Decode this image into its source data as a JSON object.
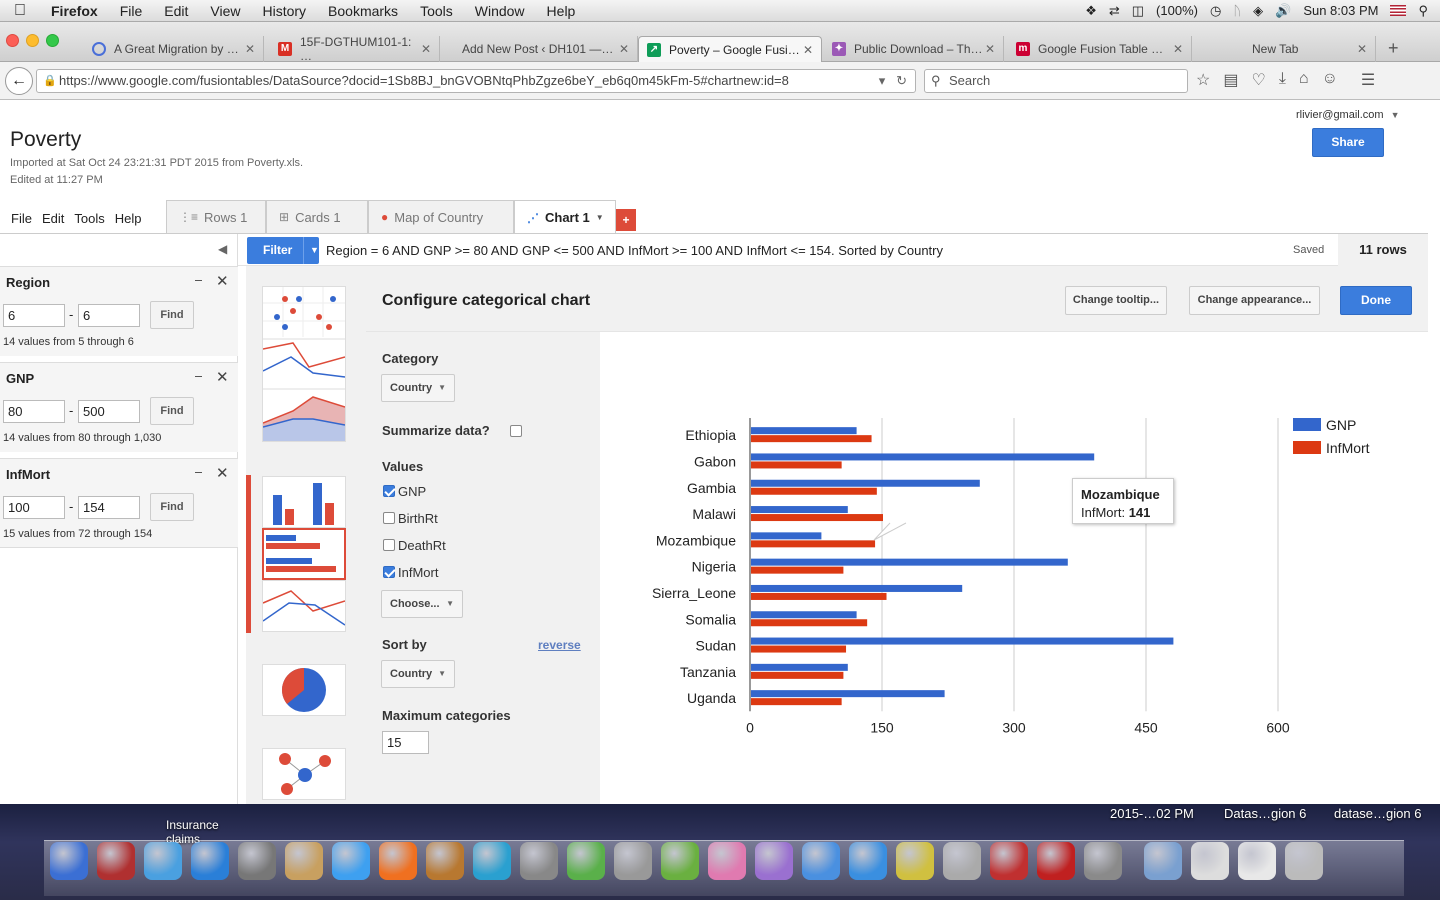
{
  "os_menu": {
    "apple": "",
    "app": "Firefox",
    "items": [
      "File",
      "Edit",
      "View",
      "History",
      "Bookmarks",
      "Tools",
      "Window",
      "Help"
    ],
    "battery": "(100%)",
    "clock": "Sun 8:03 PM"
  },
  "browser": {
    "tabs": [
      {
        "label": "A Great Migration by …",
        "icon_color": "#4a6fd8",
        "icon": "circle-icon"
      },
      {
        "label": "15F-DGTHUM101-1: …",
        "icon_color": "#d93025",
        "icon": "gmail-icon"
      },
      {
        "label": "Add New Post ‹ DH101 —…",
        "icon_color": "#ffffff",
        "icon": "wordpress-icon"
      },
      {
        "label": "Poverty – Google Fusi…",
        "icon_color": "#0f9d58",
        "icon": "chart-icon"
      },
      {
        "label": "Public Download – Th…",
        "icon_color": "#9b59b6",
        "icon": "puzzle-icon"
      },
      {
        "label": "Google Fusion Table …",
        "icon_color": "#cc0033",
        "icon": "m-icon"
      },
      {
        "label": "New Tab",
        "icon_color": "",
        "icon": ""
      }
    ],
    "url": "https://www.google.com/fusiontables/DataSource?docid=1Sb8BJ_bnGVOBNtqPhbZgze6beY_eb6q0m45kFm-5#chartnew:id=8",
    "search_placeholder": "Search"
  },
  "doc": {
    "title": "Poverty",
    "imported": "Imported at Sat Oct 24 23:21:31 PDT 2015 from Poverty.xls.",
    "edited": "Edited at 11:27 PM",
    "user": "rlivier@gmail.com",
    "share": "Share"
  },
  "app_menu": [
    "File",
    "Edit",
    "Tools",
    "Help"
  ],
  "table_tabs": [
    {
      "label": "Rows 1",
      "icon": "rows-icon"
    },
    {
      "label": "Cards 1",
      "icon": "cards-icon"
    },
    {
      "label": "Map of Country",
      "icon": "map-pin-icon"
    },
    {
      "label": "Chart 1",
      "icon": "chart-icon"
    }
  ],
  "filters": [
    {
      "label": "Region",
      "min": "6",
      "max": "6",
      "find": "Find",
      "note": "14 values from 5 through 6"
    },
    {
      "label": "GNP",
      "min": "80",
      "max": "500",
      "find": "Find",
      "note": "14 values from 80 through 1,030"
    },
    {
      "label": "InfMort",
      "min": "100",
      "max": "154",
      "find": "Find",
      "note": "15 values from 72 through 154"
    }
  ],
  "filterbar": {
    "button": "Filter",
    "text": "Region = 6 AND GNP >= 80 AND GNP <= 500 AND InfMort >= 100 AND InfMort <= 154. Sorted by Country",
    "saved": "Saved",
    "rows": "11 rows"
  },
  "config": {
    "title": "Configure categorical chart",
    "tooltip_btn": "Change tooltip...",
    "appearance_btn": "Change appearance...",
    "done": "Done",
    "category_label": "Category",
    "category_value": "Country",
    "summarize_label": "Summarize data?",
    "values_label": "Values",
    "values": [
      {
        "label": "GNP",
        "checked": true
      },
      {
        "label": "BirthRt",
        "checked": false
      },
      {
        "label": "DeathRt",
        "checked": false
      },
      {
        "label": "InfMort",
        "checked": true
      }
    ],
    "choose": "Choose...",
    "sortby_label": "Sort by",
    "reverse": "reverse",
    "sortby_value": "Country",
    "maxcat_label": "Maximum categories",
    "maxcat_value": "15"
  },
  "chart_data": {
    "type": "bar",
    "orientation": "horizontal",
    "categories": [
      "Ethiopia",
      "Gabon",
      "Gambia",
      "Malawi",
      "Mozambique",
      "Nigeria",
      "Sierra_Leone",
      "Somalia",
      "Sudan",
      "Tanzania",
      "Uganda"
    ],
    "series": [
      {
        "name": "GNP",
        "color": "#3366cc",
        "values": [
          120,
          390,
          260,
          110,
          80,
          360,
          240,
          120,
          480,
          110,
          220
        ]
      },
      {
        "name": "InfMort",
        "color": "#dc3912",
        "values": [
          137,
          103,
          143,
          150,
          141,
          105,
          154,
          132,
          108,
          105,
          103
        ]
      }
    ],
    "xlim": [
      0,
      600
    ],
    "xticks": [
      "0",
      "150",
      "300",
      "450",
      "600"
    ],
    "legend": "right",
    "grid": true,
    "tooltip": {
      "title": "Mozambique",
      "label": "InfMort:",
      "value": "141"
    }
  },
  "dock": {
    "labels": [
      "Insurance claims",
      "2015-…02 PM",
      "Datas…gion 6",
      "datase…gion 6"
    ]
  }
}
